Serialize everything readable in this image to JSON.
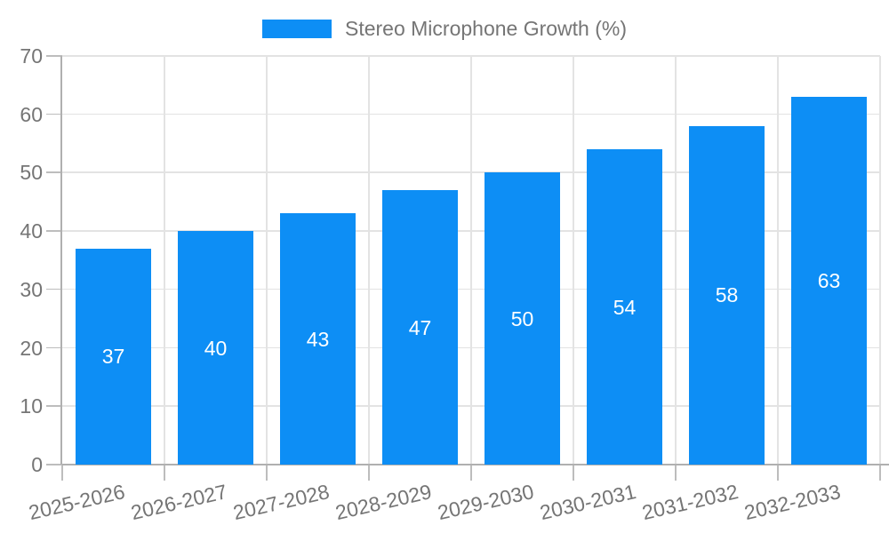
{
  "chart_data": {
    "type": "bar",
    "title": "",
    "legend": "Stereo Microphone Growth (%)",
    "legend_position": "top-center",
    "categories": [
      "2025-2026",
      "2026-2027",
      "2027-2028",
      "2028-2029",
      "2029-2030",
      "2030-2031",
      "2031-2032",
      "2032-2033"
    ],
    "values": [
      37,
      40,
      43,
      47,
      50,
      54,
      58,
      63
    ],
    "xlabel": "",
    "ylabel": "",
    "ylim": [
      0,
      70
    ],
    "ytick_step": 10,
    "ytick_labels": [
      "0",
      "10",
      "20",
      "30",
      "40",
      "50",
      "60",
      "70"
    ],
    "grid": true,
    "x_label_rotation_deg": -13,
    "colors": {
      "bar": "#0d8ef5",
      "bar_value_label": "#ffffff",
      "axis_text": "#757575",
      "legend_text": "#757575",
      "axis_line": "#b0b0b0",
      "tick_line": "#bdbdbd",
      "grid_line": "#e3e3e3",
      "background": "#ffffff"
    }
  }
}
